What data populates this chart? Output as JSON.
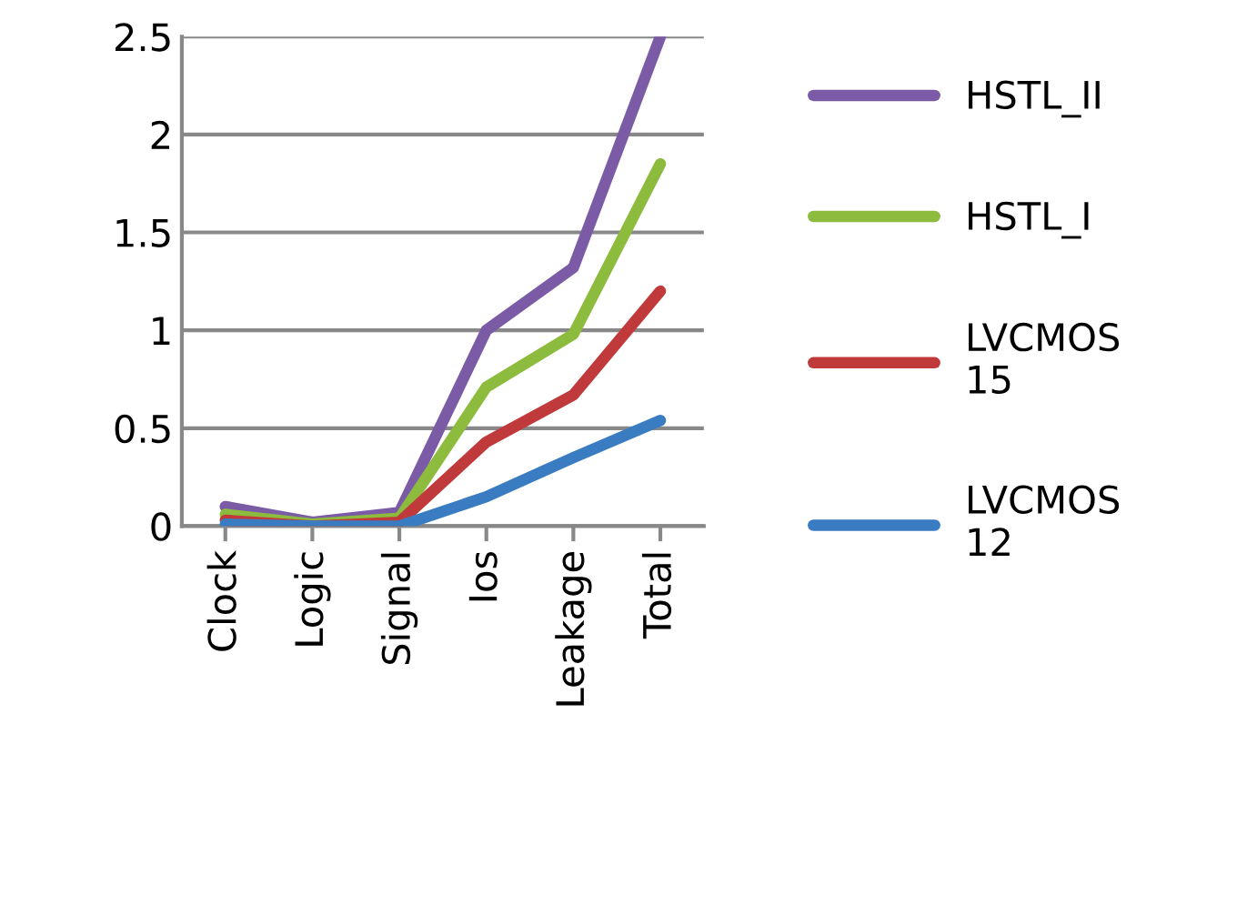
{
  "chart_data": {
    "type": "line",
    "categories": [
      "Clock",
      "Logic",
      "Signal",
      "Ios",
      "Leakage",
      "Total"
    ],
    "series": [
      {
        "name": "HSTL_II",
        "color": "#7b5aa6",
        "values": [
          0.1,
          0.02,
          0.07,
          1.0,
          1.32,
          2.5
        ]
      },
      {
        "name": "HSTL_I",
        "color": "#8cbb3e",
        "values": [
          0.06,
          0.01,
          0.04,
          0.71,
          0.98,
          1.85
        ]
      },
      {
        "name": "LVCMOS 15",
        "color": "#c0393b",
        "values": [
          0.03,
          0.0,
          0.02,
          0.43,
          0.67,
          1.2
        ]
      },
      {
        "name": "LVCMOS 12",
        "color": "#3a7cc2",
        "values": [
          0.01,
          0.0,
          0.0,
          0.15,
          0.35,
          0.54
        ]
      }
    ],
    "ylim": [
      0,
      2.5
    ],
    "yticks": [
      0,
      0.5,
      1,
      1.5,
      2,
      2.5
    ],
    "grid": "y",
    "legend": "right",
    "marker": "none",
    "line_style": "solid"
  }
}
